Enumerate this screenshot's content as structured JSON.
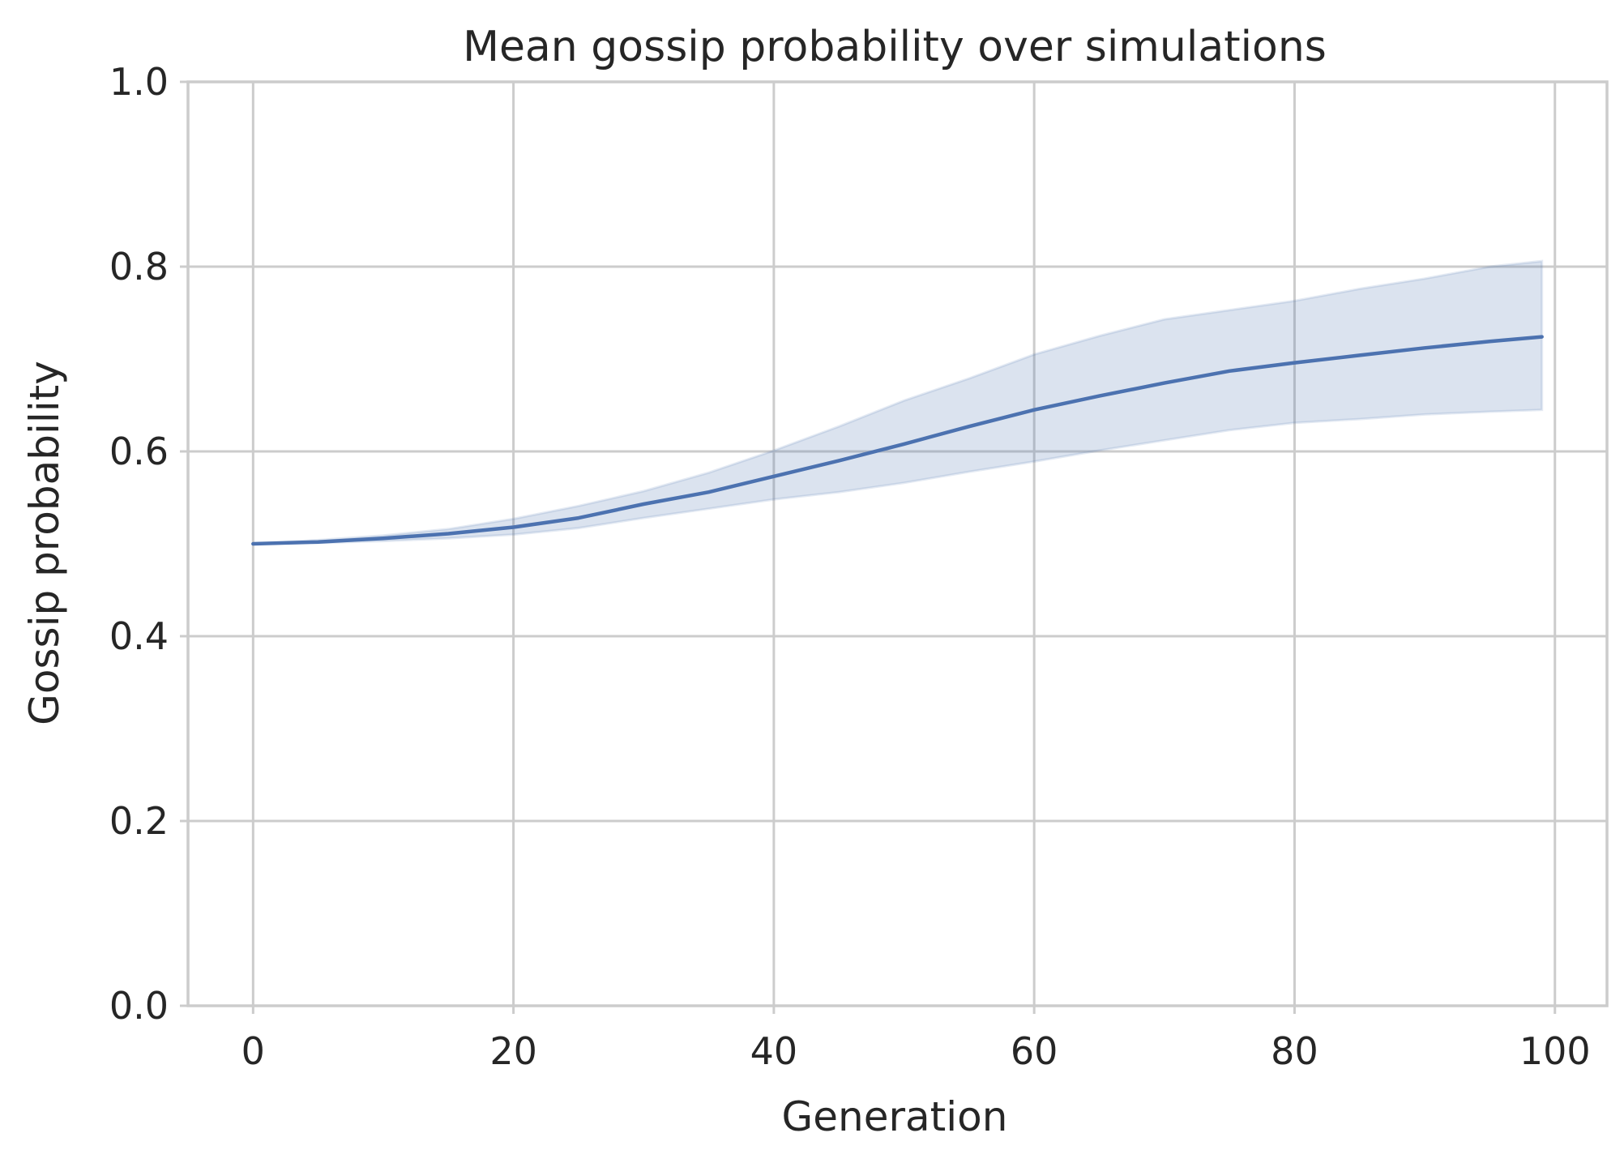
{
  "chart_data": {
    "type": "line",
    "title": "Mean gossip probability over simulations",
    "xlabel": "Generation",
    "ylabel": "Gossip probability",
    "xlim": [
      -5,
      104
    ],
    "ylim": [
      0.0,
      1.0
    ],
    "xticks": [
      0,
      20,
      40,
      60,
      80,
      100
    ],
    "yticks": [
      0.0,
      0.2,
      0.4,
      0.6,
      0.8,
      1.0
    ],
    "xtick_labels": [
      "0",
      "20",
      "40",
      "60",
      "80",
      "100"
    ],
    "ytick_labels": [
      "0.0",
      "0.2",
      "0.4",
      "0.6",
      "0.8",
      "1.0"
    ],
    "grid": true,
    "colors": {
      "line": "#4c72b0",
      "band": "#4c72b0",
      "grid": "#cccccc",
      "text": "#262626"
    },
    "series": [
      {
        "x": [
          0,
          5,
          10,
          15,
          20,
          25,
          30,
          35,
          40,
          45,
          50,
          55,
          60,
          65,
          70,
          75,
          80,
          85,
          90,
          95,
          99
        ],
        "mean": [
          0.5,
          0.502,
          0.506,
          0.511,
          0.518,
          0.528,
          0.543,
          0.556,
          0.573,
          0.59,
          0.608,
          0.627,
          0.645,
          0.66,
          0.674,
          0.687,
          0.696,
          0.704,
          0.712,
          0.719,
          0.724
        ],
        "lower": [
          0.5,
          0.501,
          0.503,
          0.506,
          0.51,
          0.517,
          0.528,
          0.538,
          0.548,
          0.556,
          0.566,
          0.578,
          0.589,
          0.601,
          0.612,
          0.623,
          0.631,
          0.635,
          0.64,
          0.643,
          0.645
        ],
        "upper": [
          0.5,
          0.504,
          0.509,
          0.516,
          0.527,
          0.541,
          0.557,
          0.577,
          0.601,
          0.627,
          0.655,
          0.679,
          0.705,
          0.725,
          0.743,
          0.753,
          0.763,
          0.776,
          0.787,
          0.8,
          0.806
        ]
      }
    ]
  }
}
